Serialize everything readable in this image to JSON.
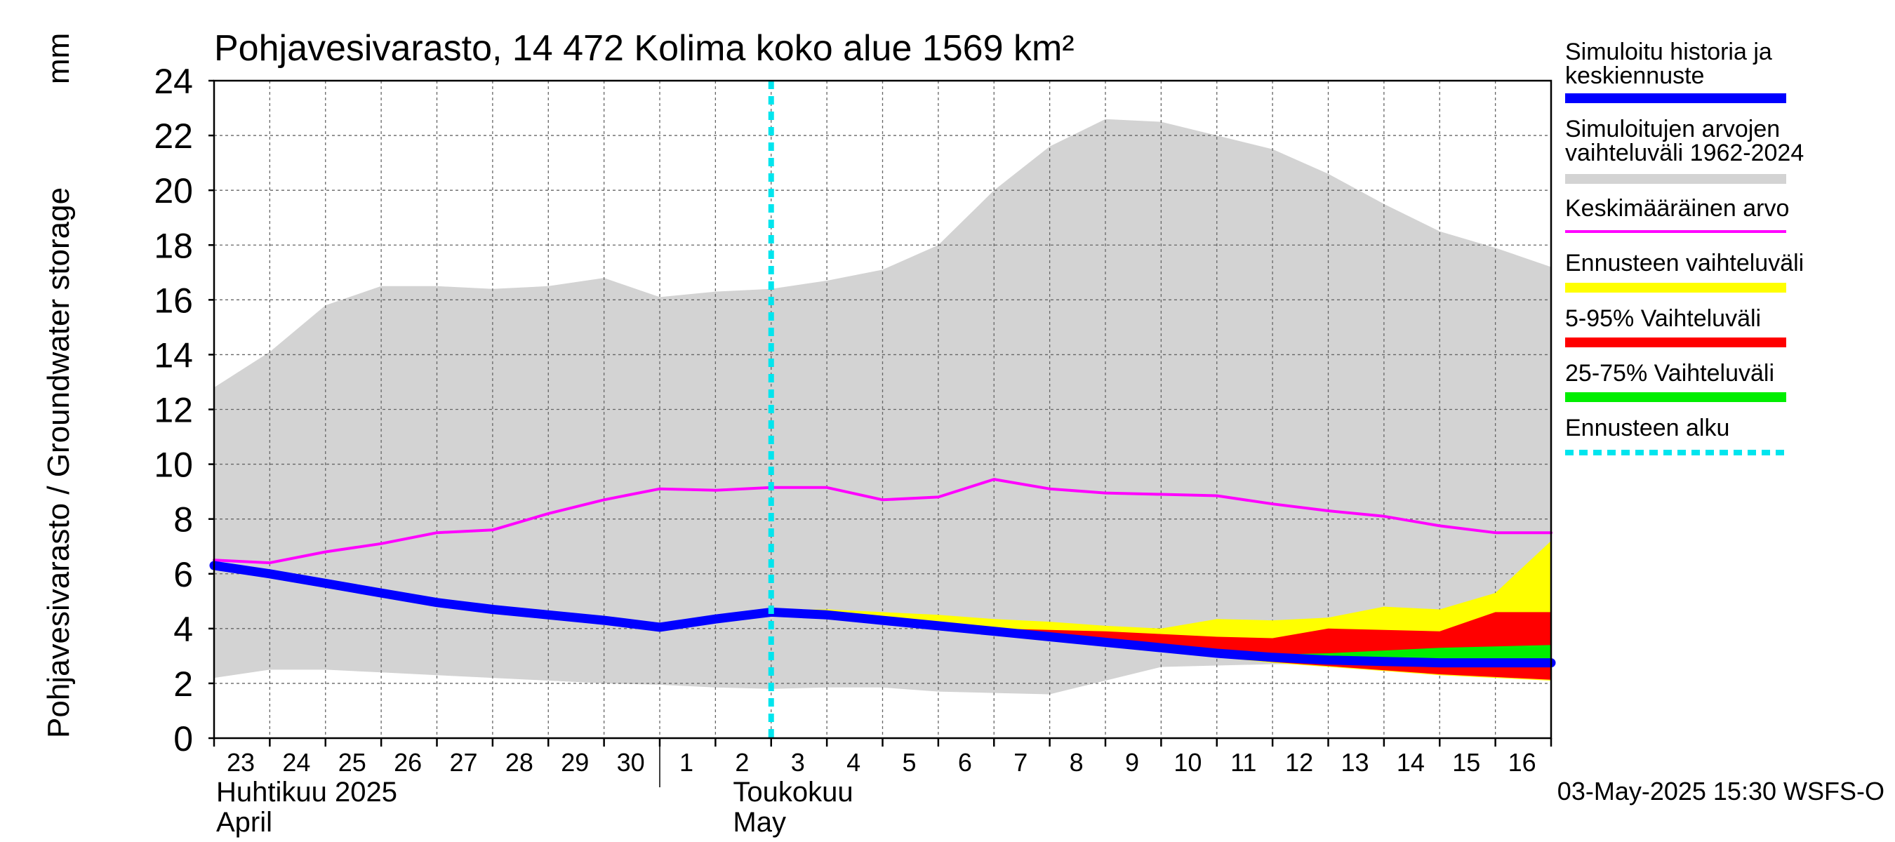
{
  "chart_data": {
    "type": "area",
    "title": "Pohjavesivarasto, 14 472 Kolima koko alue 1569 km²",
    "ylabel": "Pohjavesivarasto / Groundwater storage",
    "yunit": "mm",
    "ylim": [
      0,
      24
    ],
    "yticks": [
      0,
      2,
      4,
      6,
      8,
      10,
      12,
      14,
      16,
      18,
      20,
      22,
      24
    ],
    "xlim": [
      "2025-04-23",
      "2025-05-17"
    ],
    "x_tick_labels": [
      "23",
      "24",
      "25",
      "26",
      "27",
      "28",
      "29",
      "30",
      "1",
      "2",
      "3",
      "4",
      "5",
      "6",
      "7",
      "8",
      "9",
      "10",
      "11",
      "12",
      "13",
      "14",
      "15",
      "16"
    ],
    "month_labels": [
      {
        "fi": "Huhtikuu  2025",
        "en": "April"
      },
      {
        "fi": "Toukokuu",
        "en": "May"
      }
    ],
    "forecast_start": "2025-05-03",
    "footer": "03-May-2025 15:30 WSFS-O",
    "grid": true,
    "legend_position": "right",
    "legend": [
      {
        "label": "Simuloitu historia ja keskiennuste",
        "color": "#0000ff",
        "style": "thick"
      },
      {
        "label": "Simuloitujen arvojen vaihteluväli 1962-2024",
        "color": "#d3d3d3",
        "style": "thick"
      },
      {
        "label": "Keskimääräinen arvo",
        "color": "#ff00ff",
        "style": "thin"
      },
      {
        "label": "Ennusteen vaihteluväli",
        "color": "#ffff00",
        "style": "thick"
      },
      {
        "label": "5-95% Vaihteluväli",
        "color": "#ff0000",
        "style": "thick"
      },
      {
        "label": "25-75% Vaihteluväli",
        "color": "#00ee00",
        "style": "thick"
      },
      {
        "label": "Ennusteen alku",
        "color": "#00e5ee",
        "style": "dashed"
      }
    ],
    "series": {
      "range_min": [
        [
          0,
          2.2
        ],
        [
          1,
          2.5
        ],
        [
          2,
          2.5
        ],
        [
          3,
          2.4
        ],
        [
          4,
          2.3
        ],
        [
          5,
          2.2
        ],
        [
          6,
          2.1
        ],
        [
          7,
          2.0
        ],
        [
          8,
          1.95
        ],
        [
          9,
          1.85
        ],
        [
          10,
          1.8
        ],
        [
          11,
          1.85
        ],
        [
          12,
          1.85
        ],
        [
          13,
          1.7
        ],
        [
          14,
          1.65
        ],
        [
          15,
          1.6
        ],
        [
          16,
          2.1
        ],
        [
          17,
          2.6
        ],
        [
          18,
          2.65
        ],
        [
          19,
          2.7
        ],
        [
          20,
          2.7
        ],
        [
          21,
          2.7
        ],
        [
          22,
          2.7
        ],
        [
          23,
          2.7
        ],
        [
          24,
          2.7
        ]
      ],
      "range_max": [
        [
          0,
          12.8
        ],
        [
          1,
          14.1
        ],
        [
          2,
          15.8
        ],
        [
          3,
          16.5
        ],
        [
          4,
          16.5
        ],
        [
          5,
          16.4
        ],
        [
          6,
          16.5
        ],
        [
          7,
          16.8
        ],
        [
          8,
          16.1
        ],
        [
          9,
          16.3
        ],
        [
          10,
          16.4
        ],
        [
          11,
          16.7
        ],
        [
          12,
          17.1
        ],
        [
          13,
          18.0
        ],
        [
          14,
          20.0
        ],
        [
          15,
          21.6
        ],
        [
          16,
          22.6
        ],
        [
          17,
          22.5
        ],
        [
          18,
          22.0
        ],
        [
          19,
          21.5
        ],
        [
          20,
          20.6
        ],
        [
          21,
          19.5
        ],
        [
          22,
          18.5
        ],
        [
          23,
          17.9
        ],
        [
          24,
          17.2
        ]
      ],
      "mean": [
        [
          0,
          6.5
        ],
        [
          1,
          6.4
        ],
        [
          2,
          6.8
        ],
        [
          3,
          7.1
        ],
        [
          4,
          7.5
        ],
        [
          5,
          7.6
        ],
        [
          6,
          8.2
        ],
        [
          7,
          8.7
        ],
        [
          8,
          9.1
        ],
        [
          9,
          9.05
        ],
        [
          10,
          9.15
        ],
        [
          11,
          9.15
        ],
        [
          12,
          8.7
        ],
        [
          13,
          8.8
        ],
        [
          14,
          9.45
        ],
        [
          15,
          9.1
        ],
        [
          16,
          8.95
        ],
        [
          17,
          8.9
        ],
        [
          18,
          8.85
        ],
        [
          19,
          8.55
        ],
        [
          20,
          8.3
        ],
        [
          21,
          8.1
        ],
        [
          22,
          7.75
        ],
        [
          23,
          7.5
        ],
        [
          24,
          7.5
        ]
      ],
      "median": [
        [
          0,
          6.3
        ],
        [
          1,
          6.0
        ],
        [
          2,
          5.65
        ],
        [
          3,
          5.3
        ],
        [
          4,
          4.95
        ],
        [
          5,
          4.7
        ],
        [
          6,
          4.5
        ],
        [
          7,
          4.3
        ],
        [
          8,
          4.05
        ],
        [
          9,
          4.35
        ],
        [
          10,
          4.6
        ],
        [
          11,
          4.5
        ],
        [
          12,
          4.3
        ],
        [
          13,
          4.1
        ],
        [
          14,
          3.9
        ],
        [
          15,
          3.7
        ],
        [
          16,
          3.5
        ],
        [
          17,
          3.3
        ],
        [
          18,
          3.1
        ],
        [
          19,
          2.95
        ],
        [
          20,
          2.85
        ],
        [
          21,
          2.8
        ],
        [
          22,
          2.75
        ],
        [
          23,
          2.75
        ],
        [
          24,
          2.75
        ]
      ],
      "forecast_min": [
        [
          10,
          4.6
        ],
        [
          11,
          4.45
        ],
        [
          12,
          4.25
        ],
        [
          13,
          4.05
        ],
        [
          14,
          3.8
        ],
        [
          15,
          3.6
        ],
        [
          16,
          3.35
        ],
        [
          17,
          3.15
        ],
        [
          18,
          2.95
        ],
        [
          19,
          2.75
        ],
        [
          20,
          2.6
        ],
        [
          21,
          2.45
        ],
        [
          22,
          2.3
        ],
        [
          23,
          2.2
        ],
        [
          24,
          2.1
        ]
      ],
      "forecast_max": [
        [
          10,
          4.7
        ],
        [
          11,
          4.7
        ],
        [
          12,
          4.6
        ],
        [
          13,
          4.5
        ],
        [
          14,
          4.35
        ],
        [
          15,
          4.25
        ],
        [
          16,
          4.1
        ],
        [
          17,
          4.0
        ],
        [
          18,
          4.35
        ],
        [
          19,
          4.3
        ],
        [
          20,
          4.4
        ],
        [
          21,
          4.8
        ],
        [
          22,
          4.7
        ],
        [
          23,
          5.3
        ],
        [
          24,
          7.2
        ]
      ],
      "p5": [
        [
          10,
          4.6
        ],
        [
          11,
          4.45
        ],
        [
          12,
          4.25
        ],
        [
          13,
          4.05
        ],
        [
          14,
          3.8
        ],
        [
          15,
          3.6
        ],
        [
          16,
          3.38
        ],
        [
          17,
          3.18
        ],
        [
          18,
          2.98
        ],
        [
          19,
          2.78
        ],
        [
          20,
          2.63
        ],
        [
          21,
          2.48
        ],
        [
          22,
          2.33
        ],
        [
          23,
          2.23
        ],
        [
          24,
          2.13
        ]
      ],
      "p95": [
        [
          10,
          4.62
        ],
        [
          11,
          4.5
        ],
        [
          12,
          4.33
        ],
        [
          13,
          4.15
        ],
        [
          14,
          4.0
        ],
        [
          15,
          3.95
        ],
        [
          16,
          3.9
        ],
        [
          17,
          3.8
        ],
        [
          18,
          3.7
        ],
        [
          19,
          3.65
        ],
        [
          20,
          4.0
        ],
        [
          21,
          3.95
        ],
        [
          22,
          3.9
        ],
        [
          23,
          4.6
        ],
        [
          24,
          4.6
        ]
      ],
      "p25": [
        [
          16,
          3.45
        ],
        [
          17,
          3.25
        ],
        [
          18,
          3.05
        ],
        [
          19,
          2.9
        ],
        [
          20,
          2.8
        ],
        [
          21,
          2.7
        ],
        [
          22,
          2.65
        ],
        [
          23,
          2.6
        ],
        [
          24,
          2.6
        ]
      ],
      "p75": [
        [
          16,
          3.5
        ],
        [
          17,
          3.35
        ],
        [
          18,
          3.2
        ],
        [
          19,
          3.05
        ],
        [
          20,
          3.1
        ],
        [
          21,
          3.2
        ],
        [
          22,
          3.3
        ],
        [
          23,
          3.35
        ],
        [
          24,
          3.4
        ]
      ]
    }
  }
}
